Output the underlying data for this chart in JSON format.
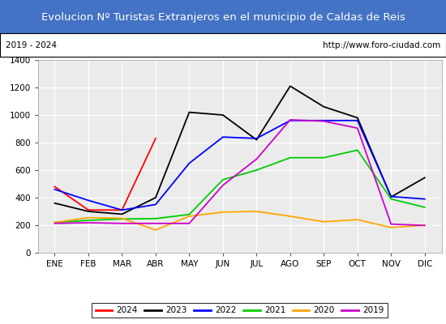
{
  "title": "Evolucion Nº Turistas Extranjeros en el municipio de Caldas de Reis",
  "title_color": "#ffffff",
  "title_bg_color": "#4472c4",
  "subtitle_left": "2019 - 2024",
  "subtitle_right": "http://www.foro-ciudad.com",
  "months": [
    "ENE",
    "FEB",
    "MAR",
    "ABR",
    "MAY",
    "JUN",
    "JUL",
    "AGO",
    "SEP",
    "OCT",
    "NOV",
    "DIC"
  ],
  "ylim": [
    0,
    1400
  ],
  "yticks": [
    0,
    200,
    400,
    600,
    800,
    1000,
    1200,
    1400
  ],
  "series": {
    "2024": {
      "color": "#ff0000",
      "data": [
        480,
        310,
        310,
        830,
        null,
        null,
        null,
        null,
        null,
        null,
        null,
        null
      ]
    },
    "2023": {
      "color": "#000000",
      "data": [
        360,
        300,
        280,
        400,
        1020,
        1000,
        820,
        1210,
        1060,
        980,
        405,
        545
      ]
    },
    "2022": {
      "color": "#0000ff",
      "data": [
        460,
        380,
        310,
        350,
        650,
        840,
        830,
        960,
        960,
        960,
        408,
        390
      ]
    },
    "2021": {
      "color": "#00cc00",
      "data": [
        220,
        235,
        245,
        248,
        278,
        530,
        600,
        690,
        690,
        745,
        390,
        330
      ]
    },
    "2020": {
      "color": "#ffa500",
      "data": [
        220,
        255,
        250,
        165,
        265,
        295,
        300,
        265,
        225,
        240,
        183,
        200
      ]
    },
    "2019": {
      "color": "#cc00cc",
      "data": [
        213,
        218,
        213,
        213,
        213,
        490,
        680,
        965,
        955,
        905,
        208,
        198
      ]
    }
  },
  "legend_order": [
    "2024",
    "2023",
    "2022",
    "2021",
    "2020",
    "2019"
  ],
  "bg_color": "#ffffff",
  "plot_bg_color": "#ebebeb",
  "grid_color": "#ffffff",
  "border_color": "#000000"
}
